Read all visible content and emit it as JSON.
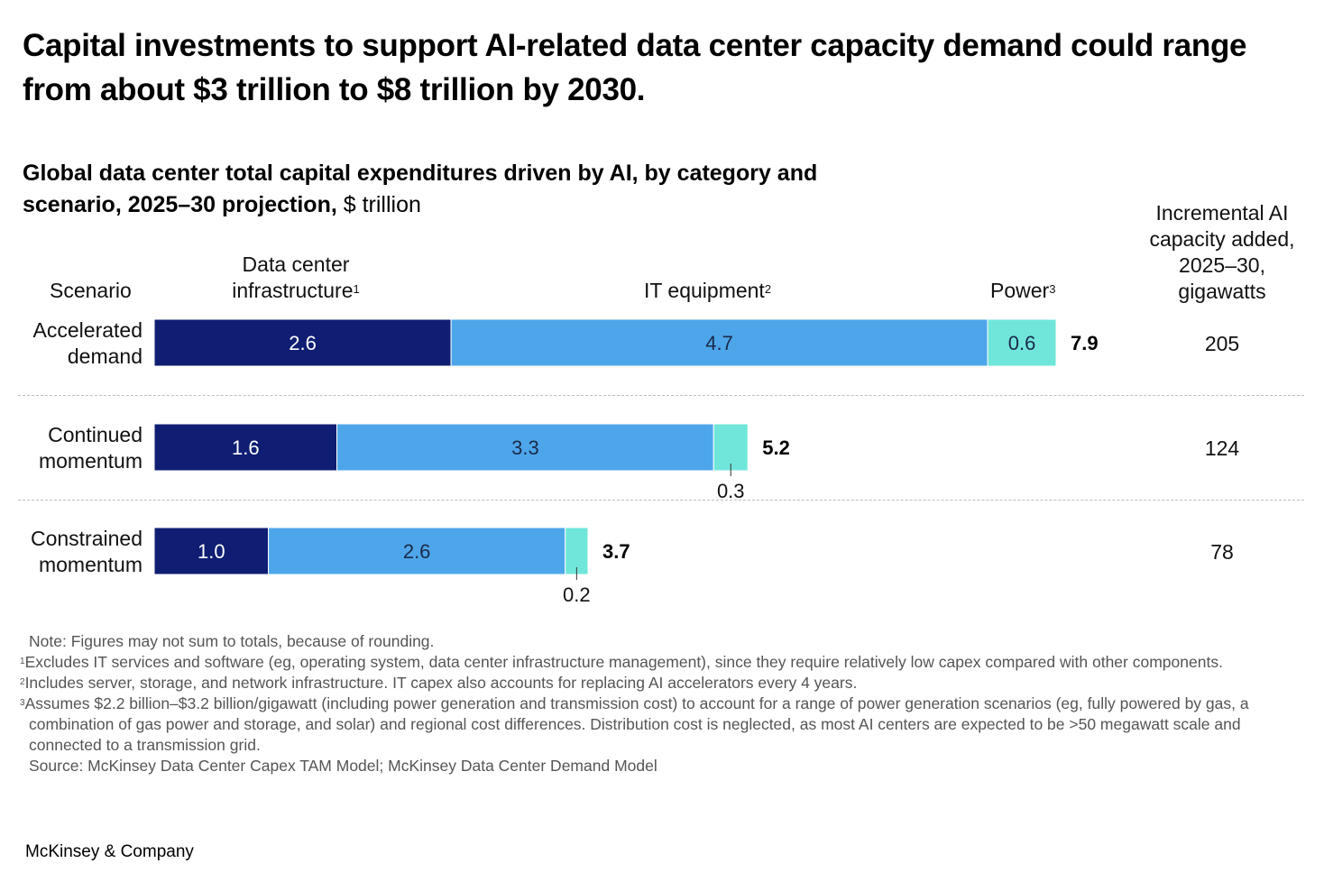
{
  "header": {
    "title": "Capital investments to support AI-related data center capacity demand could range from about $3 trillion to $8 trillion by 2030.",
    "subtitle_bold": "Global data center total capital expenditures driven by AI, by category and scenario, 2025–30 projection,",
    "subtitle_unit": " $ trillion"
  },
  "columns": {
    "scenario": "Scenario",
    "infra_line1": "Data center",
    "infra_line2": "infrastructure",
    "infra_sup": "1",
    "it": "IT equipment",
    "it_sup": "2",
    "power": "Power",
    "power_sup": "3",
    "capacity_line1": "Incremental AI",
    "capacity_line2": "capacity added,",
    "capacity_line3": "2025–30,",
    "capacity_line4": "gigawatts"
  },
  "rows": [
    {
      "label_line1": "Accelerated",
      "label_line2": "demand",
      "gigawatts": "205"
    },
    {
      "label_line1": "Continued",
      "label_line2": "momentum",
      "gigawatts": "124"
    },
    {
      "label_line1": "Constrained",
      "label_line2": "momentum",
      "gigawatts": "78"
    }
  ],
  "colors": {
    "infrastructure": "#0f1e73",
    "it_equipment": "#4ea6ea",
    "power": "#6fe6d9"
  },
  "chart_data": {
    "type": "bar",
    "orientation": "horizontal",
    "stacked": true,
    "title": "Global data center total capital expenditures driven by AI, by category and scenario, 2025–30 projection, $ trillion",
    "categories": [
      "Accelerated demand",
      "Continued momentum",
      "Constrained momentum"
    ],
    "series": [
      {
        "name": "Data center infrastructure",
        "values": [
          2.6,
          1.6,
          1.0
        ],
        "labels": [
          "2.6",
          "1.6",
          "1.0"
        ]
      },
      {
        "name": "IT equipment",
        "values": [
          4.7,
          3.3,
          2.6
        ],
        "labels": [
          "4.7",
          "3.3",
          "2.6"
        ]
      },
      {
        "name": "Power",
        "values": [
          0.6,
          0.3,
          0.2
        ],
        "labels": [
          "0.6",
          "0.3",
          "0.2"
        ]
      }
    ],
    "totals": [
      7.9,
      5.2,
      3.7
    ],
    "total_labels": [
      "7.9",
      "5.2",
      "3.7"
    ],
    "extra_column": {
      "name": "Incremental AI capacity added, 2025–30, gigawatts",
      "values": [
        205,
        124,
        78
      ]
    },
    "xlim": [
      0,
      7.9
    ],
    "xlabel": "",
    "ylabel": "Scenario",
    "grid": false,
    "legend": "column-headers-top"
  },
  "notes": {
    "note": "Note: Figures may not sum to totals, because of rounding.",
    "fn1_sup": "1",
    "fn1": "Excludes IT services and software (eg, operating system, data center infrastructure management), since they require relatively low capex compared with other components.",
    "fn2_sup": "2",
    "fn2": "Includes server, storage, and network infrastructure. IT capex also accounts for replacing AI accelerators every 4 years.",
    "fn3_sup": "3",
    "fn3": "Assumes $2.2 billion–$3.2 billion/gigawatt (including power generation and transmission cost) to account for a range of power generation scenarios (eg, fully powered by gas, a combination of gas power and storage, and solar) and regional cost differences. Distribution cost is neglected, as most AI centers are expected to be >50 megawatt scale and connected to a transmission grid.",
    "source": "Source: McKinsey Data Center Capex TAM Model; McKinsey Data Center Demand Model"
  },
  "brand": "McKinsey & Company"
}
